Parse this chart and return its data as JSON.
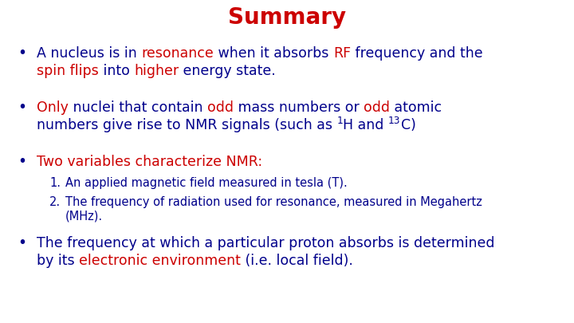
{
  "title": "Summary",
  "title_color": "#CC0000",
  "background_color": "#ffffff",
  "dark_blue": "#00008B",
  "red": "#CC0000",
  "bullet_char": "•",
  "figsize": [
    7.2,
    4.05
  ],
  "dpi": 100
}
